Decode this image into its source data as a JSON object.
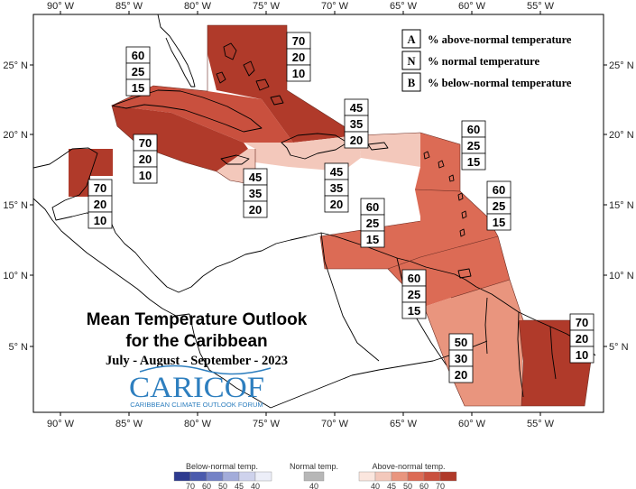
{
  "title": {
    "line1": "Mean Temperature Outlook",
    "line2": "for the Caribbean",
    "period": "July - August - September - 2023"
  },
  "logo": {
    "name": "CARICOF",
    "subtitle": "CARIBBEAN CLIMATE OUTLOOK FORUM"
  },
  "axes": {
    "lon_ticks": [
      "90° W",
      "85° W",
      "80° W",
      "75° W",
      "70° W",
      "65° W",
      "60° W",
      "55° W"
    ],
    "lat_ticks": [
      "25° N",
      "20° N",
      "15° N",
      "10° N",
      "5° N"
    ]
  },
  "key": [
    {
      "letter": "A",
      "text": "% above-normal temperature"
    },
    {
      "letter": "N",
      "text": "% normal temperature"
    },
    {
      "letter": "B",
      "text": "% below-normal temperature"
    }
  ],
  "regions": [
    {
      "id": "bahamas",
      "above": 70,
      "normal": 20,
      "below": 10,
      "color": "#b03a2a"
    },
    {
      "id": "cuba",
      "above": 60,
      "normal": 25,
      "below": 15,
      "color": "#c9503e"
    },
    {
      "id": "cayman-jamaica",
      "above": 70,
      "normal": 20,
      "below": 10,
      "color": "#b03a2a"
    },
    {
      "id": "belize",
      "above": 70,
      "normal": 20,
      "below": 10,
      "color": "#b03a2a"
    },
    {
      "id": "jamaica-south",
      "above": 45,
      "normal": 35,
      "below": 20,
      "color": "#f3c8bb"
    },
    {
      "id": "hispaniola",
      "above": 45,
      "normal": 35,
      "below": 20,
      "color": "#f3c8bb"
    },
    {
      "id": "puerto-rico",
      "above": 45,
      "normal": 35,
      "below": 20,
      "color": "#f3c8bb"
    },
    {
      "id": "leewards",
      "above": 60,
      "normal": 25,
      "below": 15,
      "color": "#dc6b55"
    },
    {
      "id": "windwards",
      "above": 60,
      "normal": 25,
      "below": 15,
      "color": "#dc6b55"
    },
    {
      "id": "abc-islands",
      "above": 60,
      "normal": 25,
      "below": 15,
      "color": "#dc6b55"
    },
    {
      "id": "trinidad",
      "above": 60,
      "normal": 25,
      "below": 15,
      "color": "#dc6b55"
    },
    {
      "id": "guyana",
      "above": 50,
      "normal": 30,
      "below": 20,
      "color": "#e9957e"
    },
    {
      "id": "suriname-guiana",
      "above": 70,
      "normal": 20,
      "below": 10,
      "color": "#b03a2a"
    }
  ],
  "colorbar": {
    "below_title": "Below-normal temp.",
    "normal_title": "Normal temp.",
    "above_title": "Above-normal temp.",
    "below_colors": [
      "#2e3b8f",
      "#4a5aad",
      "#7482c6",
      "#a3acda",
      "#ced2ec",
      "#eceef8"
    ],
    "below_ticks": [
      "70",
      "60",
      "50",
      "45",
      "40"
    ],
    "normal_color": "#b7b7b7",
    "normal_ticks": [
      "40"
    ],
    "above_colors": [
      "#fbe6de",
      "#f3c8bb",
      "#e9957e",
      "#dc6b55",
      "#c9503e",
      "#b03a2a"
    ],
    "above_ticks": [
      "40",
      "45",
      "50",
      "60",
      "70"
    ]
  }
}
